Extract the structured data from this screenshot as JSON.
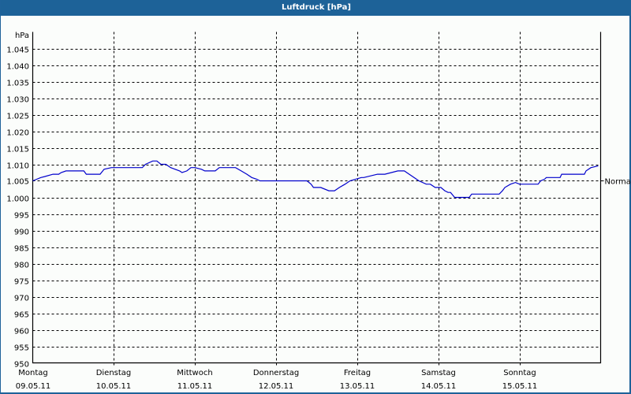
{
  "window": {
    "title": "Luftdruck [hPa]"
  },
  "chart_data": {
    "type": "line",
    "title": "Luftdruck [hPa]",
    "ylabel": "hPa",
    "xlabel": "",
    "ylim": [
      950,
      1050
    ],
    "y_ticks": [
      950,
      955,
      960,
      965,
      970,
      975,
      980,
      985,
      990,
      995,
      1000,
      1005,
      1010,
      1015,
      1020,
      1025,
      1030,
      1035,
      1040,
      1045
    ],
    "y_tick_labels": [
      "950",
      "955",
      "960",
      "965",
      "970",
      "975",
      "980",
      "985",
      "990",
      "995",
      "1.000",
      "1.005",
      "1.010",
      "1.015",
      "1.020",
      "1.025",
      "1.030",
      "1.035",
      "1.040",
      "1.045"
    ],
    "categories": [
      {
        "day": "Montag",
        "date": "09.05.11"
      },
      {
        "day": "Dienstag",
        "date": "10.05.11"
      },
      {
        "day": "Mittwoch",
        "date": "11.05.11"
      },
      {
        "day": "Donnerstag",
        "date": "12.05.11"
      },
      {
        "day": "Freitag",
        "date": "13.05.11"
      },
      {
        "day": "Samstag",
        "date": "14.05.11"
      },
      {
        "day": "Sonntag",
        "date": "15.05.11"
      }
    ],
    "grid": {
      "horizontal": true,
      "vertical": true,
      "style": "dashed"
    },
    "reference_line": {
      "label": "Normal",
      "value": 1005
    },
    "series": [
      {
        "name": "Luftdruck",
        "color": "#0000cc",
        "x_days": [
          0,
          0.1,
          0.15,
          0.25,
          0.32,
          0.35,
          0.41,
          0.63,
          0.66,
          0.83,
          0.88,
          0.97,
          1.0,
          1.35,
          1.39,
          1.48,
          1.53,
          1.58,
          1.64,
          1.7,
          1.81,
          1.84,
          1.9,
          1.95,
          2.0,
          2.08,
          2.12,
          2.25,
          2.3,
          2.5,
          2.57,
          2.64,
          2.7,
          2.76,
          2.8,
          3.0,
          3.38,
          3.43,
          3.46,
          3.55,
          3.65,
          3.72,
          3.78,
          3.85,
          3.91,
          4.05,
          4.08,
          4.25,
          4.34,
          4.5,
          4.58,
          4.64,
          4.7,
          4.76,
          4.85,
          4.9,
          4.96,
          5.03,
          5.08,
          5.12,
          5.15,
          5.2,
          5.38,
          5.41,
          5.75,
          5.79,
          5.82,
          5.89,
          5.95,
          6.0,
          6.23,
          6.26,
          6.31,
          6.33,
          6.5,
          6.52,
          6.8,
          6.82,
          6.88,
          6.97
        ],
        "values": [
          1005,
          1006,
          1006.3,
          1007,
          1007,
          1007.5,
          1008,
          1008,
          1007,
          1007,
          1008.5,
          1009,
          1009,
          1009,
          1010,
          1011,
          1011,
          1010,
          1010,
          1009,
          1008,
          1007.5,
          1008,
          1009,
          1009,
          1008.5,
          1008,
          1008,
          1009,
          1009,
          1008,
          1007,
          1006,
          1005.5,
          1005,
          1005,
          1005,
          1004,
          1003,
          1003,
          1002,
          1002,
          1003,
          1004,
          1005,
          1006,
          1006,
          1007,
          1007,
          1008,
          1008,
          1007,
          1006,
          1005,
          1004,
          1004,
          1003,
          1003,
          1002,
          1001.5,
          1001.5,
          1000,
          1000,
          1001,
          1001,
          1002,
          1003,
          1004,
          1004.5,
          1004,
          1004,
          1005,
          1005.5,
          1006,
          1006,
          1007,
          1007,
          1008,
          1009,
          1009.5
        ]
      }
    ]
  }
}
